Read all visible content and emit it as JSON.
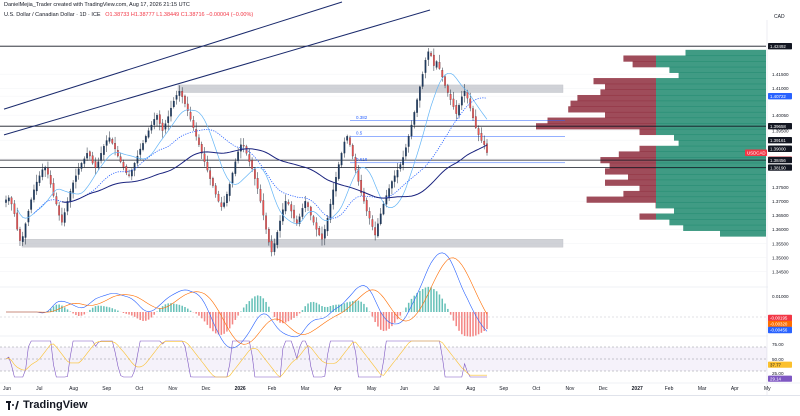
{
  "header": {
    "author_line": "DanielMejia_Trader created with TradingView.com, Aug 17, 2026 21:15 UTC",
    "symbol_title": "U.S. Dollar / Canadian Dollar · 1D · ICE",
    "ohlc": "O1.38733  H1.38777  L1.38449  C1.38716  −0.00004 (−0.00%)",
    "currency": "CAD"
  },
  "chart_data": {
    "type": "candlestick",
    "title": "U.S. Dollar / Canadian Dollar · 1D · ICE",
    "currency": "CAD",
    "y_ticks": [
      1.42492,
      1.415,
      1.41,
      1.40722,
      1.4005,
      1.395,
      1.39161,
      1.385,
      1.38456,
      1.3819,
      1.375,
      1.37,
      1.365,
      1.36,
      1.355,
      1.35,
      1.345
    ],
    "y_tick_labels": [
      "1.42492",
      "1.41500",
      "1.41000",
      "1.40722",
      "1.40050",
      "1.39500",
      "1.39161",
      "1.38500",
      "1.38456",
      "1.38190",
      "1.37500",
      "1.37000",
      "1.36500",
      "1.36000",
      "1.35500",
      "1.35000",
      "1.34500"
    ],
    "ylim": [
      1.341,
      1.4335
    ],
    "extra_y_labels": [
      "1.40000",
      "1.39000",
      "1.38000"
    ],
    "x_tick_labels": [
      "Jun",
      "Jul",
      "Aug",
      "Sep",
      "Oct",
      "Nov",
      "Dec",
      "2026",
      "Feb",
      "Mar",
      "Apr",
      "May",
      "Jun",
      "Jul",
      "Aug",
      "Sep",
      "Oct",
      "Nov",
      "Dec",
      "2027",
      "Feb",
      "Mar",
      "Apr",
      "My"
    ],
    "price_flags": [
      {
        "label": "1.42492",
        "price": 1.42492,
        "color": "#131722"
      },
      {
        "label": "1.40722",
        "price": 1.40722,
        "color": "#2962ff"
      },
      {
        "label": "1.39161",
        "price": 1.39161,
        "color": "#131722"
      },
      {
        "label": "USDCAD",
        "price": 1.38716,
        "color": "#f23645"
      },
      {
        "label": "1.38716",
        "price": 1.38716,
        "color": "#f23645"
      },
      {
        "label": "1.38456",
        "price": 1.38456,
        "color": "#131722"
      },
      {
        "label": "1.38190",
        "price": 1.3819,
        "color": "#131722"
      },
      {
        "label": "1.39658",
        "price": 1.39658,
        "color": "#131722"
      },
      {
        "label": "1.39000",
        "price": 1.39,
        "color": "#131722"
      }
    ],
    "fib_levels": [
      {
        "label": "0.382",
        "price": 1.3985
      },
      {
        "label": "0.5",
        "price": 1.393
      },
      {
        "label": "0.618",
        "price": 1.3836
      }
    ],
    "horizontal_lines": [
      1.42492,
      1.39658,
      1.38456,
      1.3819
    ],
    "zones": [
      {
        "name": "resistance zone",
        "from": 1.4085,
        "to": 1.4112
      },
      {
        "name": "support zone",
        "from": 1.3537,
        "to": 1.3565
      }
    ],
    "candles_close": [
      1.3705,
      1.3712,
      1.369,
      1.3655,
      1.36,
      1.356,
      1.3575,
      1.362,
      1.3665,
      1.3705,
      1.374,
      1.3768,
      1.379,
      1.3812,
      1.382,
      1.3795,
      1.376,
      1.372,
      1.369,
      1.365,
      1.3625,
      1.366,
      1.37,
      1.3735,
      1.3765,
      1.379,
      1.3815,
      1.3835,
      1.385,
      1.387,
      1.386,
      1.3835,
      1.3818,
      1.384,
      1.387,
      1.3895,
      1.3915,
      1.3925,
      1.3905,
      1.3885,
      1.386,
      1.384,
      1.382,
      1.38,
      1.379,
      1.381,
      1.3835,
      1.386,
      1.3885,
      1.3905,
      1.393,
      1.395,
      1.397,
      1.399,
      1.4005,
      1.3975,
      1.395,
      1.3975,
      1.4,
      1.403,
      1.4055,
      1.4075,
      1.409,
      1.407,
      1.4045,
      1.402,
      1.399,
      1.396,
      1.393,
      1.39,
      1.387,
      1.384,
      1.381,
      1.378,
      1.3755,
      1.3725,
      1.37,
      1.368,
      1.3695,
      1.3725,
      1.376,
      1.38,
      1.384,
      1.3875,
      1.39,
      1.3895,
      1.387,
      1.384,
      1.3815,
      1.378,
      1.3745,
      1.37,
      1.365,
      1.36,
      1.3555,
      1.352,
      1.355,
      1.359,
      1.363,
      1.367,
      1.37,
      1.369,
      1.3665,
      1.364,
      1.362,
      1.3645,
      1.3675,
      1.37,
      1.368,
      1.365,
      1.3625,
      1.36,
      1.358,
      1.3565,
      1.36,
      1.364,
      1.369,
      1.374,
      1.3785,
      1.383,
      1.387,
      1.391,
      1.393,
      1.39,
      1.386,
      1.381,
      1.377,
      1.373,
      1.37,
      1.3665,
      1.364,
      1.361,
      1.358,
      1.362,
      1.3655,
      1.369,
      1.372,
      1.3745,
      1.377,
      1.379,
      1.381,
      1.383,
      1.3855,
      1.389,
      1.393,
      1.397,
      1.4015,
      1.406,
      1.4105,
      1.415,
      1.42,
      1.423,
      1.4215,
      1.418,
      1.4195,
      1.417,
      1.414,
      1.411,
      1.4085,
      1.406,
      1.4035,
      1.401,
      1.404,
      1.407,
      1.409,
      1.4065,
      1.403,
      1.3995,
      1.396,
      1.3935,
      1.3915,
      1.39,
      1.3872
    ],
    "volume_profile": [
      {
        "price": 1.4225,
        "value": 0.35
      },
      {
        "price": 1.4205,
        "value": 0.62
      },
      {
        "price": 1.4185,
        "value": 0.58
      },
      {
        "price": 1.4165,
        "value": 0.42
      },
      {
        "price": 1.4145,
        "value": 0.38
      },
      {
        "price": 1.4125,
        "value": 0.75
      },
      {
        "price": 1.4105,
        "value": 0.7
      },
      {
        "price": 1.4085,
        "value": 0.72
      },
      {
        "price": 1.4065,
        "value": 0.82
      },
      {
        "price": 1.4045,
        "value": 0.85
      },
      {
        "price": 1.4025,
        "value": 0.86
      },
      {
        "price": 1.4005,
        "value": 0.7
      },
      {
        "price": 1.3985,
        "value": 0.95
      },
      {
        "price": 1.3965,
        "value": 1.0
      },
      {
        "price": 1.3945,
        "value": 0.55
      },
      {
        "price": 1.3925,
        "value": 0.4
      },
      {
        "price": 1.3905,
        "value": 0.38
      },
      {
        "price": 1.3885,
        "value": 0.55
      },
      {
        "price": 1.3865,
        "value": 0.64
      },
      {
        "price": 1.3845,
        "value": 0.72
      },
      {
        "price": 1.3825,
        "value": 0.68
      },
      {
        "price": 1.3805,
        "value": 0.7
      },
      {
        "price": 1.3785,
        "value": 0.6
      },
      {
        "price": 1.3765,
        "value": 0.7
      },
      {
        "price": 1.3745,
        "value": 0.55
      },
      {
        "price": 1.3725,
        "value": 0.62
      },
      {
        "price": 1.3705,
        "value": 0.78
      },
      {
        "price": 1.3685,
        "value": 0.48
      },
      {
        "price": 1.3665,
        "value": 0.4
      },
      {
        "price": 1.3645,
        "value": 0.55
      },
      {
        "price": 1.3625,
        "value": 0.42
      },
      {
        "price": 1.3605,
        "value": 0.36
      },
      {
        "price": 1.3585,
        "value": 0.2
      }
    ],
    "macd": {
      "labels": [
        "0.01000",
        "-0.00195",
        "-0.00320",
        "-0.00456"
      ],
      "flag_colors": [
        "#f23645",
        "#ff6d00",
        "#2962ff"
      ]
    },
    "rsi": {
      "labels": [
        "75.00",
        "50.00",
        "37.77",
        "25.00",
        "29.14"
      ],
      "upper": 70,
      "lower": 30
    },
    "grid": true
  },
  "footer": {
    "brand": "TradingView"
  }
}
